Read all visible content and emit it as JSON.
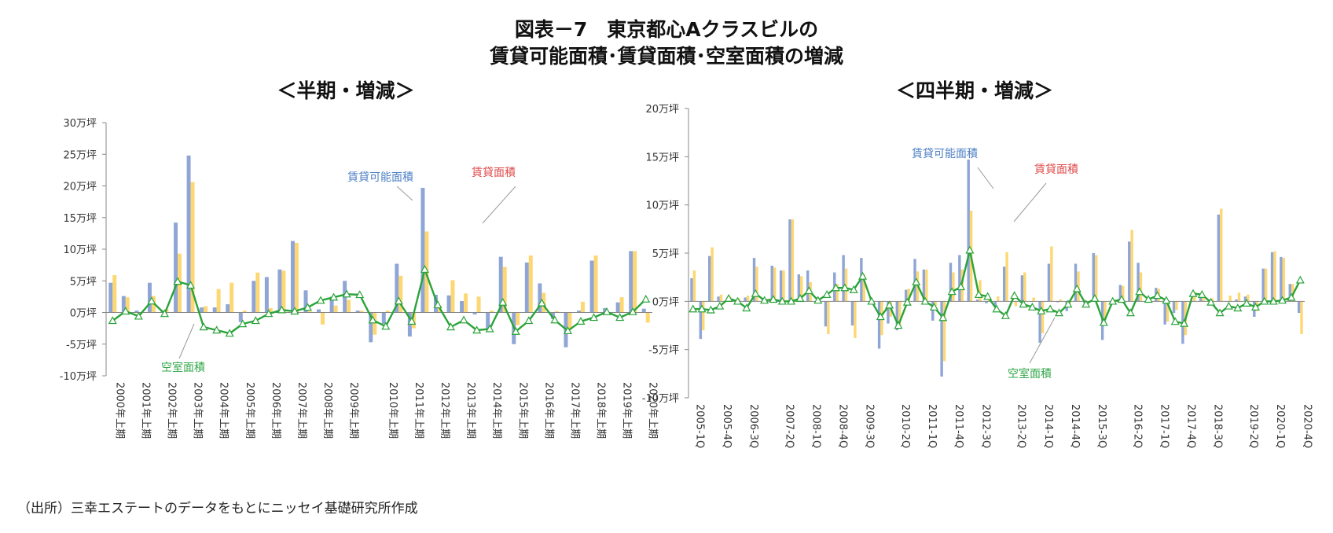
{
  "figure": {
    "title_line1": "図表－7　東京都心Aクラスビルの",
    "title_line2": "賃貸可能面積･賃貸面積･空室面積の増減",
    "source": "（出所）三幸エステートのデータをもとにニッセイ基礎研究所作成"
  },
  "colors": {
    "available": "#8ea5d6",
    "leased": "#fcd772",
    "vacant": "#2aa33a",
    "arrow": "#999999",
    "label_available": "#4d7fc4",
    "label_leased": "#e04a4a",
    "label_vacant": "#33a84a"
  },
  "chart_data": [
    {
      "type": "bar",
      "subtitle": "＜半期・増減＞",
      "ylim": [
        -10,
        30
      ],
      "yticks": [
        -10,
        -5,
        0,
        5,
        10,
        15,
        20,
        25,
        30
      ],
      "ytick_labels": [
        "-10万坪",
        "-5万坪",
        "0万坪",
        "5万坪",
        "10万坪",
        "15万坪",
        "20万坪",
        "25万坪",
        "30万坪"
      ],
      "x_labels": [
        "2000年上期",
        "2001年上期",
        "2002年上期",
        "2003年上期",
        "2004年上期",
        "2005年上期",
        "2006年上期",
        "2007年上期",
        "2008年上期",
        "2009年上期",
        "2010年上期",
        "2011年上期",
        "2012年上期",
        "2013年上期",
        "2014年上期",
        "2015年上期",
        "2016年上期",
        "2017年上期",
        "2018年上期",
        "2019年上期",
        "2020年上期"
      ],
      "series": [
        {
          "name": "賃貸可能面積",
          "kind": "bar",
          "values": [
            4.7,
            2.6,
            0.3,
            4.7,
            0.3,
            14.2,
            24.8,
            0.8,
            0.8,
            1.3,
            -1.5,
            5.0,
            5.6,
            6.8,
            11.3,
            3.5,
            0.5,
            2.5,
            5.0,
            0.3,
            -4.7,
            -1.8,
            7.7,
            -3.8,
            19.7,
            2.8,
            2.7,
            1.8,
            -0.3,
            -2.5,
            8.8,
            -5.0,
            7.9,
            4.6,
            -1.0,
            -5.5,
            0.3,
            8.2,
            0.7,
            1.6,
            9.7,
            0.6
          ]
        },
        {
          "name": "賃貸面積",
          "kind": "bar",
          "values": [
            5.9,
            2.4,
            -0.2,
            2.6,
            0.5,
            9.3,
            20.6,
            1.0,
            3.7,
            4.7,
            0.3,
            6.3,
            0.7,
            6.6,
            11.0,
            0.2,
            -1.9,
            1.1,
            2.0,
            0.3,
            -3.5,
            0.3,
            5.8,
            -2.5,
            12.8,
            1.0,
            5.1,
            3.0,
            2.5,
            0.3,
            7.2,
            -2.0,
            9.0,
            3.1,
            0.2,
            -2.6,
            1.7,
            9.0,
            -0.2,
            2.4,
            9.7,
            -1.6
          ]
        },
        {
          "name": "空室面積",
          "kind": "line",
          "values": [
            -1.3,
            0.2,
            -0.6,
            1.8,
            -0.2,
            4.9,
            4.3,
            -2.3,
            -2.8,
            -3.3,
            -1.8,
            -1.3,
            -0.2,
            0.4,
            0.2,
            0.8,
            1.9,
            2.4,
            2.9,
            2.8,
            -1.2,
            -2.2,
            1.8,
            -1.4,
            6.8,
            1.2,
            -2.3,
            -1.2,
            -2.8,
            -2.6,
            1.6,
            -3.0,
            -1.3,
            1.5,
            -1.2,
            -2.9,
            -1.4,
            -0.8,
            0.1,
            -0.8,
            0.1,
            2.1
          ]
        }
      ],
      "annotations": {
        "available": "賃貸可能面積",
        "leased": "賃貸面積",
        "vacant": "空室面積"
      }
    },
    {
      "type": "bar",
      "subtitle": "＜四半期・増減＞",
      "ylim": [
        -10,
        20
      ],
      "yticks": [
        -10,
        -5,
        0,
        5,
        10,
        15,
        20
      ],
      "ytick_labels": [
        "-10万坪",
        "-5万坪",
        "0万坪",
        "5万坪",
        "10万坪",
        "15万坪",
        "20万坪"
      ],
      "x_labels": [
        "2005-1Q",
        "2005-4Q",
        "2006-3Q",
        "2007-2Q",
        "2008-1Q",
        "2008-4Q",
        "2009-3Q",
        "2010-2Q",
        "2011-1Q",
        "2011-4Q",
        "2012-3Q",
        "2013-2Q",
        "2014-1Q",
        "2014-4Q",
        "2015-3Q",
        "2016-2Q",
        "2017-1Q",
        "2017-4Q",
        "2018-3Q",
        "2019-2Q",
        "2020-1Q",
        "2020-4Q"
      ],
      "series": [
        {
          "name": "賃貸可能面積",
          "kind": "bar",
          "values": [
            2.4,
            -3.9,
            4.7,
            0.5,
            0.3,
            0.0,
            0.4,
            4.5,
            0.3,
            3.7,
            3.2,
            8.5,
            2.8,
            3.2,
            -0.1,
            -2.6,
            3.0,
            4.8,
            -2.5,
            4.5,
            0.0,
            -4.9,
            -2.3,
            -3.0,
            1.2,
            4.4,
            3.3,
            -2.0,
            -7.8,
            4.0,
            4.8,
            14.7,
            0.2,
            -0.2,
            -0.5,
            3.6,
            0.0,
            2.7,
            0.0,
            -4.3,
            3.9,
            -0.1,
            -1.0,
            3.9,
            -0.2,
            5.0,
            -4.0,
            0.0,
            1.7,
            6.2,
            4.0,
            0.2,
            1.4,
            -2.4,
            -1.2,
            -4.4,
            0.0,
            0.6,
            0.2,
            9.0,
            0.0,
            0.2,
            0.5,
            -1.6,
            3.4,
            5.1,
            4.6,
            1.8,
            -1.2
          ]
        },
        {
          "name": "賃貸面積",
          "kind": "bar",
          "values": [
            3.2,
            -3.0,
            5.6,
            0.7,
            0.5,
            0.3,
            0.6,
            3.6,
            0.2,
            3.5,
            3.2,
            8.5,
            2.6,
            2.0,
            0.0,
            -3.4,
            1.8,
            3.4,
            -3.8,
            2.8,
            0.0,
            -3.5,
            -1.6,
            -2.5,
            1.3,
            3.1,
            3.3,
            -0.5,
            -6.2,
            3.0,
            3.3,
            9.4,
            2.2,
            0.3,
            0.5,
            5.1,
            -0.5,
            3.0,
            0.4,
            -3.3,
            5.7,
            0.2,
            -0.5,
            3.1,
            0.0,
            4.8,
            -1.9,
            0.0,
            1.6,
            7.4,
            3.0,
            0.3,
            1.3,
            -2.1,
            -0.9,
            -3.5,
            1.0,
            0.5,
            0.3,
            9.6,
            0.6,
            0.9,
            0.7,
            -1.0,
            3.4,
            5.2,
            4.5,
            1.8,
            -3.4
          ]
        },
        {
          "name": "空室面積",
          "kind": "line",
          "values": [
            -0.8,
            -0.8,
            -0.9,
            -0.5,
            0.3,
            0.0,
            -0.7,
            0.8,
            0.1,
            0.2,
            0.0,
            0.0,
            0.3,
            1.1,
            0.1,
            0.7,
            1.4,
            1.4,
            1.2,
            2.6,
            0.0,
            -1.6,
            -0.4,
            -2.5,
            -0.1,
            2.0,
            0.0,
            -0.6,
            -1.7,
            1.0,
            1.5,
            5.3,
            0.7,
            0.5,
            -0.8,
            -1.5,
            0.6,
            -0.3,
            -0.6,
            -1.0,
            -0.8,
            -1.2,
            -0.3,
            1.3,
            -0.3,
            0.3,
            -2.2,
            0.0,
            0.2,
            -1.2,
            1.0,
            0.2,
            0.6,
            0.1,
            -2.1,
            -2.3,
            0.8,
            0.7,
            -0.1,
            -1.2,
            -0.5,
            -0.7,
            -0.2,
            -0.6,
            0.0,
            0.0,
            0.1,
            0.4,
            2.2
          ]
        }
      ],
      "annotations": {
        "available": "賃貸可能面積",
        "leased": "賃貸面積",
        "vacant": "空室面積"
      }
    }
  ]
}
